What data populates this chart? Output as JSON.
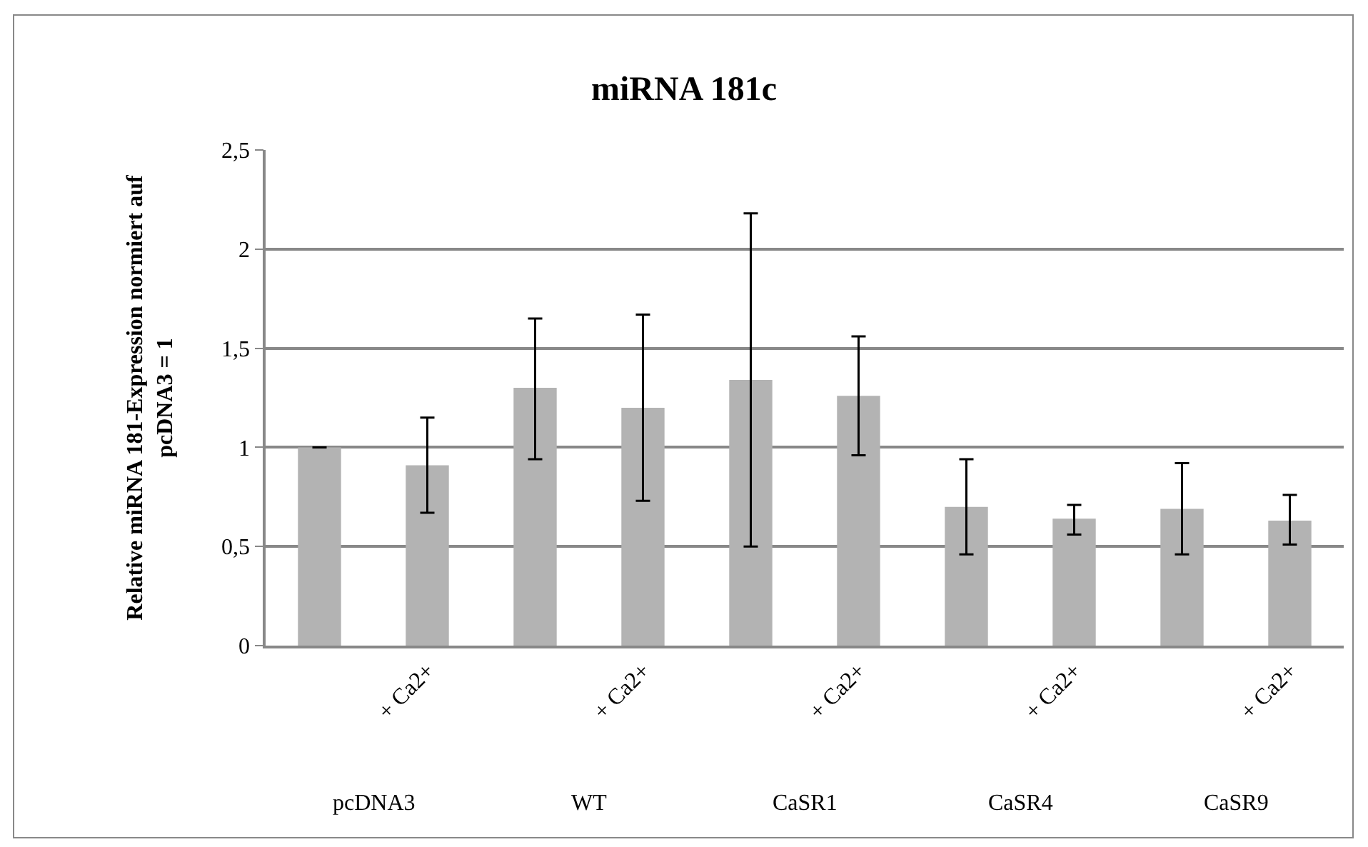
{
  "chart_data": {
    "type": "bar",
    "title": "miRNA 181c",
    "ylabel": "Relative miRNA 181-Expression normiert auf pcDNA3 = 1",
    "categories": [
      null,
      "+ Ca2+",
      null,
      "+ Ca2+",
      null,
      "+ Ca2+",
      null,
      "+ Ca2+",
      null,
      "+ Ca2+"
    ],
    "values": [
      1.0,
      0.91,
      1.3,
      1.2,
      1.34,
      1.26,
      0.7,
      0.64,
      0.69,
      0.63
    ],
    "errors": [
      null,
      [
        0.67,
        1.15
      ],
      [
        0.94,
        1.65
      ],
      [
        0.73,
        1.67
      ],
      [
        0.5,
        2.18
      ],
      [
        0.96,
        1.56
      ],
      [
        0.46,
        0.94
      ],
      [
        0.56,
        0.71
      ],
      [
        0.46,
        0.92
      ],
      [
        0.51,
        0.76
      ]
    ],
    "color": "#b3b3b3",
    "ylim": [
      0,
      2.5
    ],
    "yticks": [
      {
        "value": 0,
        "label": "0"
      },
      {
        "value": 0.5,
        "label": "0,5"
      },
      {
        "value": 1,
        "label": "1"
      },
      {
        "value": 1.5,
        "label": "1,5"
      },
      {
        "value": 2,
        "label": "2"
      },
      {
        "value": 2.5,
        "label": "2,5"
      }
    ],
    "grid": "y",
    "annotations": [
      "pcDNA3",
      "WT",
      "CaSR1",
      "CaSR4",
      "CaSR9"
    ]
  }
}
